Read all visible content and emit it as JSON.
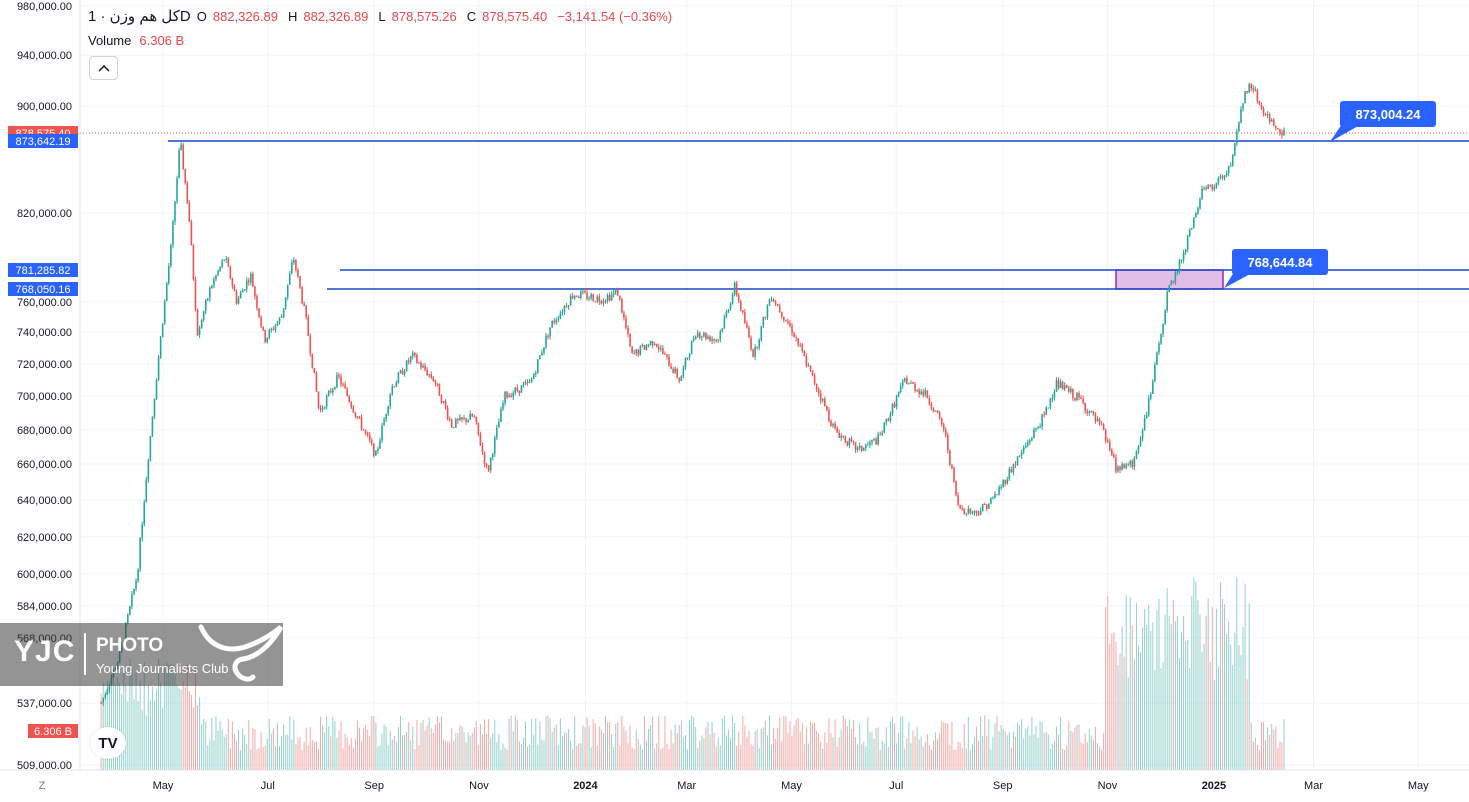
{
  "header": {
    "symbol": "کل هم وزن · 1D",
    "open_label": "O",
    "open_value": "882,326.89",
    "high_label": "H",
    "high_value": "882,326.89",
    "low_label": "L",
    "low_value": "878,575.26",
    "close_label": "C",
    "close_value": "878,575.40",
    "change": "−3,141.54 (−0.36%)",
    "volume_label": "Volume",
    "volume_value": "6.306 B"
  },
  "scale_toggle": "Z",
  "tv_logo": "TV",
  "watermark": {
    "brand": "YJC",
    "title": "PHOTO",
    "subtitle": "Young Journalists Club"
  },
  "colors": {
    "up": "#26a69a",
    "down": "#ef5350",
    "line": "#1848cc",
    "label_bg": "#2962ff",
    "zone_fill": "#e1bee7",
    "zone_border": "#9c27b0"
  },
  "chart_data": {
    "type": "candlestick",
    "title": "کل هم وزن · 1D",
    "y_axis": {
      "ticks": [
        "509,000.00",
        "537,000.00",
        "568,000.00",
        "584,000.00",
        "600,000.00",
        "620,000.00",
        "640,000.00",
        "660,000.00",
        "680,000.00",
        "700,000.00",
        "720,000.00",
        "740,000.00",
        "760,000.00",
        "820,000.00",
        "900,000.00",
        "940,000.00",
        "980,000.00"
      ]
    },
    "x_axis": {
      "ticks": [
        "May",
        "Jul",
        "Sep",
        "Nov",
        "2024",
        "Mar",
        "May",
        "Jul",
        "Sep",
        "Nov",
        "2025",
        "Mar",
        "May"
      ]
    },
    "price_labels": [
      {
        "value": "878,575.40",
        "kind": "last"
      },
      {
        "value": "873,642.19",
        "kind": "line"
      },
      {
        "value": "781,285.82",
        "kind": "line"
      },
      {
        "value": "768,050.16",
        "kind": "line"
      },
      {
        "value": "6.306 B",
        "kind": "volume"
      }
    ],
    "horizontal_lines": [
      873642.19,
      781285.82,
      768050.16
    ],
    "annotations": [
      {
        "text": "873,004.24",
        "price": 873004.24
      },
      {
        "text": "768,644.84",
        "price": 768644.84
      }
    ],
    "zone": {
      "from_price": 768050.16,
      "to_price": 781285.82
    },
    "last_price": 878575.4,
    "series_path": [
      {
        "x": "2023-03-25",
        "y": 537000
      },
      {
        "x": "2023-04-05",
        "y": 560000
      },
      {
        "x": "2023-04-15",
        "y": 600000
      },
      {
        "x": "2023-04-25",
        "y": 700000
      },
      {
        "x": "2023-05-05",
        "y": 800000
      },
      {
        "x": "2023-05-10",
        "y": 873600
      },
      {
        "x": "2023-05-15",
        "y": 820000
      },
      {
        "x": "2023-05-20",
        "y": 740000
      },
      {
        "x": "2023-05-28",
        "y": 770000
      },
      {
        "x": "2023-06-05",
        "y": 790000
      },
      {
        "x": "2023-06-12",
        "y": 760000
      },
      {
        "x": "2023-06-20",
        "y": 778000
      },
      {
        "x": "2023-06-28",
        "y": 735000
      },
      {
        "x": "2023-07-08",
        "y": 750000
      },
      {
        "x": "2023-07-15",
        "y": 790000
      },
      {
        "x": "2023-07-22",
        "y": 750000
      },
      {
        "x": "2023-07-30",
        "y": 690000
      },
      {
        "x": "2023-08-10",
        "y": 712000
      },
      {
        "x": "2023-08-20",
        "y": 690000
      },
      {
        "x": "2023-09-01",
        "y": 665000
      },
      {
        "x": "2023-09-10",
        "y": 705000
      },
      {
        "x": "2023-09-22",
        "y": 725000
      },
      {
        "x": "2023-10-05",
        "y": 710000
      },
      {
        "x": "2023-10-15",
        "y": 683000
      },
      {
        "x": "2023-10-28",
        "y": 688000
      },
      {
        "x": "2023-11-05",
        "y": 655000
      },
      {
        "x": "2023-11-15",
        "y": 700000
      },
      {
        "x": "2023-11-30",
        "y": 708000
      },
      {
        "x": "2023-12-12",
        "y": 745000
      },
      {
        "x": "2023-12-25",
        "y": 765000
      },
      {
        "x": "2024-01-10",
        "y": 762000
      },
      {
        "x": "2024-01-20",
        "y": 766000
      },
      {
        "x": "2024-01-28",
        "y": 725000
      },
      {
        "x": "2024-02-10",
        "y": 735000
      },
      {
        "x": "2024-02-25",
        "y": 710000
      },
      {
        "x": "2024-03-05",
        "y": 740000
      },
      {
        "x": "2024-03-18",
        "y": 735000
      },
      {
        "x": "2024-03-28",
        "y": 770000
      },
      {
        "x": "2024-04-08",
        "y": 725000
      },
      {
        "x": "2024-04-18",
        "y": 765000
      },
      {
        "x": "2024-05-01",
        "y": 740000
      },
      {
        "x": "2024-05-12",
        "y": 712000
      },
      {
        "x": "2024-05-25",
        "y": 680000
      },
      {
        "x": "2024-06-08",
        "y": 668000
      },
      {
        "x": "2024-06-20",
        "y": 675000
      },
      {
        "x": "2024-07-05",
        "y": 710000
      },
      {
        "x": "2024-07-18",
        "y": 700000
      },
      {
        "x": "2024-07-28",
        "y": 680000
      },
      {
        "x": "2024-08-05",
        "y": 636000
      },
      {
        "x": "2024-08-15",
        "y": 633000
      },
      {
        "x": "2024-08-25",
        "y": 640000
      },
      {
        "x": "2024-09-10",
        "y": 665000
      },
      {
        "x": "2024-09-25",
        "y": 690000
      },
      {
        "x": "2024-10-01",
        "y": 708000
      },
      {
        "x": "2024-10-15",
        "y": 698000
      },
      {
        "x": "2024-10-28",
        "y": 680000
      },
      {
        "x": "2024-11-05",
        "y": 658000
      },
      {
        "x": "2024-11-15",
        "y": 660000
      },
      {
        "x": "2024-11-25",
        "y": 700000
      },
      {
        "x": "2024-12-05",
        "y": 765000
      },
      {
        "x": "2024-12-15",
        "y": 795000
      },
      {
        "x": "2024-12-25",
        "y": 835000
      },
      {
        "x": "2025-01-05",
        "y": 845000
      },
      {
        "x": "2025-01-12",
        "y": 860000
      },
      {
        "x": "2025-01-18",
        "y": 905000
      },
      {
        "x": "2025-01-22",
        "y": 920000
      },
      {
        "x": "2025-01-28",
        "y": 900000
      },
      {
        "x": "2025-02-05",
        "y": 885000
      },
      {
        "x": "2025-02-12",
        "y": 878575
      }
    ]
  }
}
